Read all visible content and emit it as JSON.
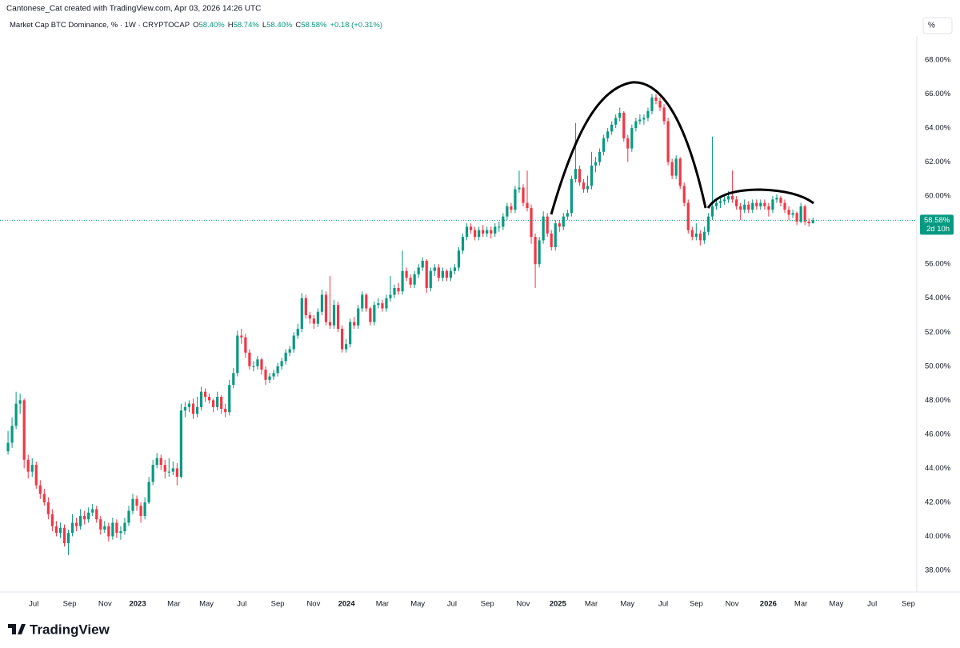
{
  "attribution": "Cantonese_Cat created with TradingView.com, Apr 03, 2026 14:26 UTC",
  "brand": "TradingView",
  "scale_button": "%",
  "chart_data": {
    "type": "candlestick",
    "title": "Market Cap BTC Dominance, % · 1W · CRYPTOCAP",
    "legend_labels": [
      "O",
      "H",
      "L",
      "C"
    ],
    "legend_values": [
      "58.40%",
      "58.74%",
      "58.40%",
      "58.58%"
    ],
    "change_label": "+0.18 (+0.31%)",
    "last_label": "58.58%",
    "countdown": "2d 10h",
    "up_color": "#089981",
    "down_color": "#f23645",
    "grid": false,
    "ylim": [
      36.73,
      69.41
    ],
    "yticks": [
      {
        "value": 38,
        "label": "38.00%"
      },
      {
        "value": 40,
        "label": "40.00%"
      },
      {
        "value": 42,
        "label": "42.00%"
      },
      {
        "value": 44,
        "label": "44.00%"
      },
      {
        "value": 46,
        "label": "46.00%"
      },
      {
        "value": 48,
        "label": "48.00%"
      },
      {
        "value": 50,
        "label": "50.00%"
      },
      {
        "value": 52,
        "label": "52.00%"
      },
      {
        "value": 54,
        "label": "54.00%"
      },
      {
        "value": 56,
        "label": "56.00%"
      },
      {
        "value": 58,
        "label": "58.00%"
      },
      {
        "value": 60,
        "label": "60.00%"
      },
      {
        "value": 62,
        "label": "62.00%"
      },
      {
        "value": 64,
        "label": "64.00%"
      },
      {
        "value": 66,
        "label": "66.00%"
      },
      {
        "value": 68,
        "label": "68.00%"
      }
    ],
    "xlim": [
      -2,
      225.6
    ],
    "xticks": [
      {
        "value": 6.4,
        "label": "Jul"
      },
      {
        "value": 15.3,
        "label": "Sep"
      },
      {
        "value": 24.1,
        "label": "Nov"
      },
      {
        "value": 32.2,
        "label": "2023"
      },
      {
        "value": 41.2,
        "label": "Mar"
      },
      {
        "value": 49.3,
        "label": "May"
      },
      {
        "value": 58.1,
        "label": "Jul"
      },
      {
        "value": 67.0,
        "label": "Sep"
      },
      {
        "value": 75.9,
        "label": "Nov"
      },
      {
        "value": 84.1,
        "label": "2024"
      },
      {
        "value": 93.0,
        "label": "Mar"
      },
      {
        "value": 101.8,
        "label": "May"
      },
      {
        "value": 110.3,
        "label": "Jul"
      },
      {
        "value": 119.1,
        "label": "Sep"
      },
      {
        "value": 128.0,
        "label": "Nov"
      },
      {
        "value": 136.6,
        "label": "2025"
      },
      {
        "value": 144.9,
        "label": "Mar"
      },
      {
        "value": 153.9,
        "label": "May"
      },
      {
        "value": 162.8,
        "label": "Jul"
      },
      {
        "value": 171.0,
        "label": "Sep"
      },
      {
        "value": 179.9,
        "label": "Nov"
      },
      {
        "value": 188.9,
        "label": "2026"
      },
      {
        "value": 197.0,
        "label": "Mar"
      },
      {
        "value": 205.8,
        "label": "May"
      },
      {
        "value": 214.7,
        "label": "Jul"
      },
      {
        "value": 223.7,
        "label": "Sep"
      }
    ],
    "ohlc": [
      [
        45.0,
        46.2,
        44.8,
        45.5
      ],
      [
        45.5,
        47.0,
        45.2,
        46.5
      ],
      [
        46.5,
        48.5,
        46.3,
        47.8
      ],
      [
        47.8,
        48.4,
        47.2,
        48.0
      ],
      [
        48.0,
        48.1,
        44.0,
        44.5
      ],
      [
        44.5,
        44.8,
        43.4,
        43.8
      ],
      [
        43.8,
        44.6,
        43.5,
        44.2
      ],
      [
        44.2,
        44.4,
        42.8,
        43.0
      ],
      [
        43.0,
        43.3,
        42.2,
        42.5
      ],
      [
        42.5,
        42.8,
        41.8,
        42.0
      ],
      [
        42.0,
        42.3,
        41.0,
        41.3
      ],
      [
        41.3,
        41.6,
        40.3,
        40.6
      ],
      [
        40.6,
        40.9,
        40.0,
        40.2
      ],
      [
        40.2,
        40.8,
        39.9,
        40.5
      ],
      [
        40.5,
        40.7,
        39.4,
        39.6
      ],
      [
        39.6,
        40.4,
        38.9,
        40.2
      ],
      [
        40.2,
        41.3,
        40.0,
        40.8
      ],
      [
        40.8,
        41.1,
        40.3,
        40.6
      ],
      [
        40.6,
        41.6,
        40.4,
        41.2
      ],
      [
        41.2,
        41.5,
        40.7,
        41.0
      ],
      [
        41.0,
        41.7,
        40.8,
        41.4
      ],
      [
        41.4,
        41.9,
        41.2,
        41.6
      ],
      [
        41.6,
        41.8,
        40.8,
        41.0
      ],
      [
        41.0,
        41.2,
        40.1,
        40.4
      ],
      [
        40.4,
        40.9,
        40.2,
        40.6
      ],
      [
        40.6,
        40.8,
        39.7,
        40.0
      ],
      [
        40.0,
        41.1,
        39.8,
        40.8
      ],
      [
        40.8,
        41.0,
        39.9,
        40.2
      ],
      [
        40.2,
        40.6,
        39.8,
        40.3
      ],
      [
        40.3,
        41.1,
        40.1,
        40.8
      ],
      [
        40.8,
        41.8,
        40.6,
        41.5
      ],
      [
        41.5,
        42.5,
        41.3,
        42.2
      ],
      [
        42.2,
        42.4,
        41.5,
        41.8
      ],
      [
        41.8,
        42.0,
        40.8,
        41.2
      ],
      [
        41.2,
        42.3,
        41.0,
        42.0
      ],
      [
        42.0,
        43.5,
        41.9,
        43.2
      ],
      [
        43.2,
        44.5,
        43.0,
        44.2
      ],
      [
        44.2,
        44.9,
        44.0,
        44.6
      ],
      [
        44.6,
        44.8,
        43.9,
        44.2
      ],
      [
        44.2,
        44.5,
        43.4,
        43.8
      ],
      [
        43.8,
        44.6,
        43.5,
        43.8
      ],
      [
        43.8,
        44.4,
        43.6,
        44.0
      ],
      [
        44.0,
        44.3,
        43.0,
        43.5
      ],
      [
        43.5,
        47.8,
        43.4,
        47.4
      ],
      [
        47.4,
        47.9,
        47.0,
        47.6
      ],
      [
        47.6,
        48.0,
        47.3,
        47.8
      ],
      [
        47.8,
        48.1,
        46.9,
        47.2
      ],
      [
        47.2,
        48.2,
        47.0,
        47.6
      ],
      [
        47.6,
        48.8,
        47.4,
        48.5
      ],
      [
        48.5,
        48.7,
        47.9,
        48.2
      ],
      [
        48.2,
        48.4,
        47.8,
        48.0
      ],
      [
        48.0,
        48.1,
        47.3,
        47.6
      ],
      [
        47.6,
        48.5,
        47.4,
        48.2
      ],
      [
        48.2,
        48.3,
        47.2,
        47.5
      ],
      [
        47.5,
        47.8,
        47.0,
        47.3
      ],
      [
        47.3,
        49.2,
        47.1,
        48.9
      ],
      [
        48.9,
        49.9,
        48.7,
        49.6
      ],
      [
        49.6,
        52.1,
        49.4,
        51.8
      ],
      [
        51.8,
        52.2,
        51.3,
        51.7
      ],
      [
        51.7,
        51.9,
        50.5,
        50.8
      ],
      [
        50.8,
        51.0,
        49.8,
        50.0
      ],
      [
        50.0,
        50.3,
        49.7,
        50.0
      ],
      [
        50.0,
        50.6,
        49.8,
        50.4
      ],
      [
        50.4,
        50.5,
        49.5,
        49.8
      ],
      [
        49.8,
        50.0,
        48.9,
        49.2
      ],
      [
        49.2,
        49.6,
        49.0,
        49.4
      ],
      [
        49.4,
        49.8,
        49.2,
        49.6
      ],
      [
        49.6,
        50.2,
        49.4,
        50.0
      ],
      [
        50.0,
        50.5,
        49.8,
        50.3
      ],
      [
        50.3,
        51.0,
        50.1,
        50.8
      ],
      [
        50.8,
        51.2,
        50.6,
        51.0
      ],
      [
        51.0,
        52.0,
        50.8,
        51.8
      ],
      [
        51.8,
        52.5,
        51.6,
        52.2
      ],
      [
        52.2,
        54.3,
        52.0,
        54.0
      ],
      [
        54.0,
        54.2,
        52.8,
        53.0
      ],
      [
        53.0,
        53.2,
        52.5,
        52.8
      ],
      [
        52.8,
        53.0,
        52.2,
        52.5
      ],
      [
        52.5,
        53.4,
        52.3,
        53.2
      ],
      [
        53.2,
        54.5,
        53.0,
        54.2
      ],
      [
        54.2,
        54.4,
        52.4,
        52.6
      ],
      [
        52.6,
        55.3,
        52.2,
        52.4
      ],
      [
        52.4,
        53.9,
        52.2,
        53.6
      ],
      [
        53.6,
        53.8,
        52.0,
        52.2
      ],
      [
        52.2,
        52.4,
        50.8,
        51.0
      ],
      [
        51.0,
        51.6,
        50.8,
        51.3
      ],
      [
        51.3,
        52.8,
        51.1,
        52.6
      ],
      [
        52.6,
        52.9,
        52.2,
        52.4
      ],
      [
        52.4,
        53.6,
        52.2,
        53.4
      ],
      [
        53.4,
        54.4,
        53.2,
        54.2
      ],
      [
        54.2,
        54.3,
        53.2,
        53.4
      ],
      [
        53.4,
        53.5,
        52.4,
        52.6
      ],
      [
        52.6,
        53.8,
        52.4,
        53.6
      ],
      [
        53.6,
        54.0,
        53.4,
        53.7
      ],
      [
        53.7,
        53.9,
        53.2,
        53.4
      ],
      [
        53.4,
        54.2,
        53.2,
        54.0
      ],
      [
        54.0,
        55.3,
        53.8,
        54.2
      ],
      [
        54.2,
        54.8,
        54.0,
        54.6
      ],
      [
        54.6,
        54.9,
        54.2,
        54.4
      ],
      [
        54.4,
        56.8,
        54.2,
        55.6
      ],
      [
        55.6,
        55.8,
        55.0,
        55.2
      ],
      [
        55.2,
        55.4,
        54.6,
        54.8
      ],
      [
        54.8,
        55.6,
        54.6,
        55.4
      ],
      [
        55.4,
        56.0,
        55.2,
        55.8
      ],
      [
        55.8,
        56.4,
        55.6,
        56.2
      ],
      [
        56.2,
        56.3,
        54.3,
        54.6
      ],
      [
        54.6,
        55.8,
        54.4,
        55.6
      ],
      [
        55.6,
        56.0,
        55.3,
        55.8
      ],
      [
        55.8,
        56.0,
        55.0,
        55.2
      ],
      [
        55.2,
        55.8,
        55.0,
        55.6
      ],
      [
        55.6,
        55.7,
        55.0,
        55.2
      ],
      [
        55.2,
        55.8,
        55.0,
        55.6
      ],
      [
        55.6,
        56.0,
        55.4,
        55.8
      ],
      [
        55.8,
        57.0,
        55.6,
        56.8
      ],
      [
        56.8,
        57.8,
        56.6,
        57.6
      ],
      [
        57.6,
        58.4,
        57.4,
        58.2
      ],
      [
        58.2,
        58.4,
        57.8,
        58.0
      ],
      [
        58.0,
        58.2,
        57.4,
        57.6
      ],
      [
        57.6,
        58.2,
        57.4,
        58.0
      ],
      [
        58.0,
        58.3,
        57.6,
        57.8
      ],
      [
        57.8,
        58.2,
        57.6,
        58.0
      ],
      [
        58.0,
        58.2,
        57.5,
        57.8
      ],
      [
        57.8,
        58.4,
        57.6,
        58.2
      ],
      [
        58.2,
        58.5,
        57.9,
        58.2
      ],
      [
        58.2,
        59.0,
        58.0,
        58.8
      ],
      [
        58.8,
        59.6,
        58.6,
        59.4
      ],
      [
        59.4,
        59.6,
        59.0,
        59.2
      ],
      [
        59.2,
        60.6,
        59.0,
        60.4
      ],
      [
        60.4,
        61.5,
        60.2,
        60.5
      ],
      [
        60.5,
        60.7,
        59.4,
        59.6
      ],
      [
        59.6,
        61.5,
        59.1,
        59.3
      ],
      [
        59.3,
        59.5,
        57.2,
        57.6
      ],
      [
        57.6,
        57.8,
        54.6,
        56.0
      ],
      [
        56.0,
        57.6,
        55.8,
        57.4
      ],
      [
        57.4,
        59.1,
        57.2,
        58.8
      ],
      [
        58.8,
        59.0,
        57.6,
        57.8
      ],
      [
        57.8,
        58.0,
        56.8,
        57.0
      ],
      [
        57.0,
        58.6,
        56.8,
        58.4
      ],
      [
        58.4,
        58.6,
        57.9,
        58.2
      ],
      [
        58.2,
        59.0,
        58.0,
        58.8
      ],
      [
        58.8,
        59.2,
        58.6,
        59.0
      ],
      [
        59.0,
        61.2,
        58.8,
        61.0
      ],
      [
        61.0,
        64.3,
        60.8,
        61.6
      ],
      [
        61.6,
        61.8,
        60.6,
        60.8
      ],
      [
        60.8,
        61.0,
        60.2,
        60.4
      ],
      [
        60.4,
        61.2,
        60.2,
        60.6
      ],
      [
        60.6,
        62.6,
        60.4,
        61.8
      ],
      [
        61.8,
        62.3,
        61.4,
        62.0
      ],
      [
        62.0,
        62.8,
        61.8,
        62.6
      ],
      [
        62.6,
        63.6,
        62.4,
        63.4
      ],
      [
        63.4,
        64.0,
        63.2,
        63.8
      ],
      [
        63.8,
        64.4,
        63.6,
        64.2
      ],
      [
        64.2,
        64.8,
        64.0,
        64.6
      ],
      [
        64.6,
        65.2,
        64.4,
        64.9
      ],
      [
        64.9,
        65.0,
        63.2,
        63.4
      ],
      [
        63.4,
        63.6,
        62.0,
        62.8
      ],
      [
        62.8,
        64.2,
        62.6,
        64.0
      ],
      [
        64.0,
        64.6,
        63.8,
        64.4
      ],
      [
        64.4,
        64.8,
        64.2,
        64.5
      ],
      [
        64.5,
        64.8,
        64.2,
        64.6
      ],
      [
        64.6,
        65.2,
        64.4,
        65.0
      ],
      [
        65.0,
        66.0,
        64.8,
        65.8
      ],
      [
        65.8,
        66.0,
        65.4,
        65.6
      ],
      [
        65.6,
        65.8,
        65.0,
        65.2
      ],
      [
        65.2,
        65.4,
        64.2,
        64.4
      ],
      [
        64.4,
        64.6,
        61.8,
        62.0
      ],
      [
        62.0,
        62.2,
        61.0,
        61.2
      ],
      [
        61.2,
        62.4,
        61.0,
        62.2
      ],
      [
        62.2,
        62.3,
        60.4,
        60.6
      ],
      [
        60.6,
        60.8,
        59.4,
        59.6
      ],
      [
        59.6,
        59.8,
        57.8,
        58.0
      ],
      [
        58.0,
        58.2,
        57.4,
        57.6
      ],
      [
        57.6,
        58.4,
        57.4,
        57.8
      ],
      [
        57.8,
        58.0,
        57.1,
        57.4
      ],
      [
        57.4,
        58.2,
        57.2,
        57.9
      ],
      [
        57.9,
        59.0,
        57.7,
        58.8
      ],
      [
        58.8,
        63.5,
        58.6,
        59.4
      ],
      [
        59.4,
        59.8,
        59.2,
        59.6
      ],
      [
        59.6,
        60.0,
        59.3,
        59.7
      ],
      [
        59.7,
        60.0,
        59.5,
        59.8
      ],
      [
        59.8,
        60.3,
        59.6,
        60.0
      ],
      [
        60.0,
        61.5,
        59.6,
        59.8
      ],
      [
        59.8,
        60.0,
        59.2,
        59.4
      ],
      [
        59.4,
        59.6,
        58.6,
        59.2
      ],
      [
        59.2,
        59.8,
        59.0,
        59.5
      ],
      [
        59.5,
        59.7,
        59.0,
        59.2
      ],
      [
        59.2,
        59.8,
        59.0,
        59.6
      ],
      [
        59.6,
        59.8,
        59.2,
        59.4
      ],
      [
        59.4,
        59.8,
        59.2,
        59.6
      ],
      [
        59.6,
        59.8,
        59.2,
        59.4
      ],
      [
        59.4,
        59.6,
        58.8,
        59.2
      ],
      [
        59.2,
        60.0,
        59.0,
        59.8
      ],
      [
        59.8,
        60.1,
        59.6,
        59.9
      ],
      [
        59.9,
        60.0,
        59.4,
        59.6
      ],
      [
        59.6,
        59.8,
        59.0,
        59.2
      ],
      [
        59.2,
        59.4,
        58.6,
        58.9
      ],
      [
        58.9,
        59.2,
        58.7,
        59.0
      ],
      [
        59.0,
        59.1,
        58.3,
        58.5
      ],
      [
        58.5,
        59.6,
        58.4,
        59.4
      ],
      [
        59.4,
        59.5,
        58.3,
        58.5
      ],
      [
        58.5,
        58.7,
        58.2,
        58.4
      ],
      [
        58.4,
        58.74,
        58.4,
        58.58
      ]
    ]
  }
}
